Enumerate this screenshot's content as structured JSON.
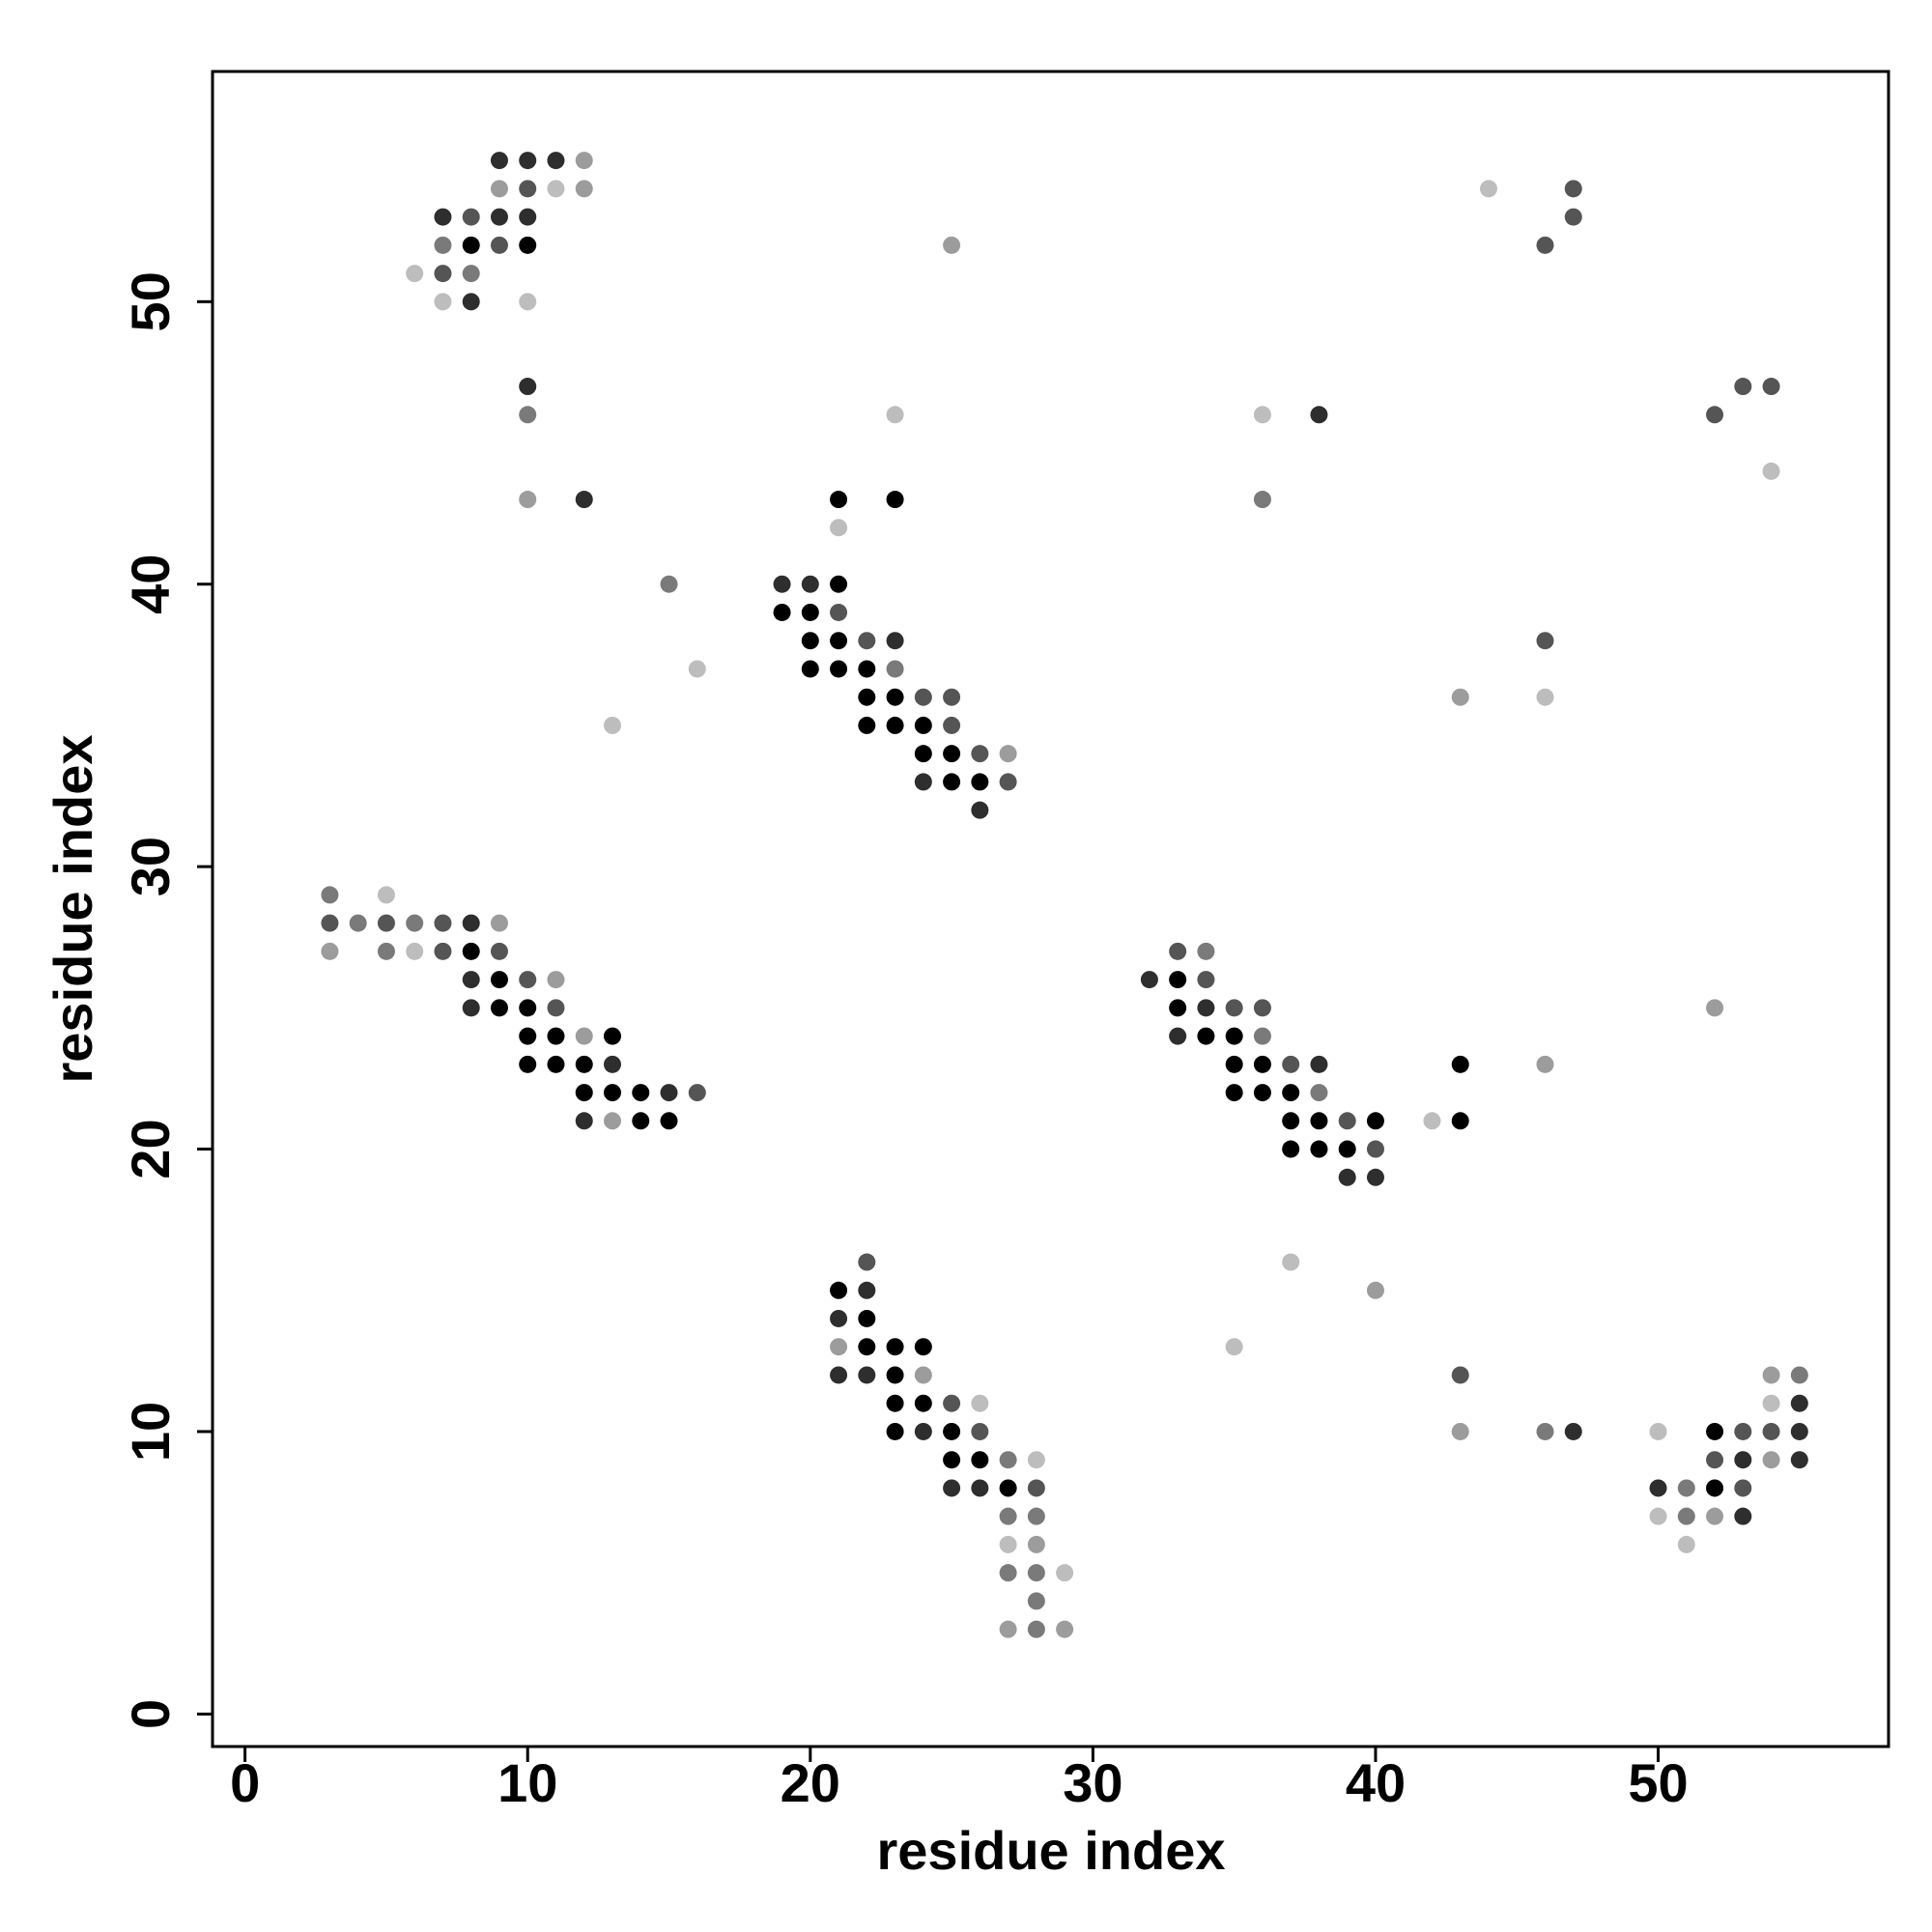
{
  "chart_data": {
    "type": "scatter",
    "xlabel": "residue index",
    "ylabel": "residue index",
    "xlim": [
      -1.15,
      58.15
    ],
    "ylim": [
      -1.15,
      58.15
    ],
    "xticks": [
      0,
      10,
      20,
      30,
      40,
      50
    ],
    "yticks": [
      0,
      10,
      20,
      30,
      40,
      50
    ],
    "series": [
      {
        "color": "#000000",
        "x": [
          8,
          10,
          21,
          23,
          21,
          19,
          20,
          20,
          21,
          20,
          21,
          22,
          22,
          23,
          22,
          23,
          24,
          24,
          25,
          25,
          26,
          8,
          9,
          33,
          9,
          10,
          33,
          10,
          11,
          13,
          34,
          35,
          10,
          11,
          12,
          35,
          36,
          43,
          12,
          13,
          14,
          35,
          36,
          37,
          14,
          15,
          37,
          38,
          40,
          43,
          37,
          38,
          39,
          21,
          22,
          22,
          23,
          24,
          23,
          23,
          24,
          23,
          25,
          52,
          25,
          26,
          27,
          52
        ],
        "values": [
          52,
          52,
          43,
          43,
          40,
          39,
          39,
          38,
          38,
          37,
          37,
          37,
          36,
          36,
          35,
          35,
          35,
          34,
          34,
          33,
          33,
          27,
          26,
          26,
          25,
          25,
          25,
          24,
          24,
          24,
          24,
          24,
          23,
          23,
          23,
          23,
          23,
          23,
          22,
          22,
          22,
          22,
          22,
          22,
          21,
          21,
          21,
          21,
          21,
          21,
          20,
          20,
          20,
          15,
          14,
          13,
          13,
          13,
          12,
          11,
          11,
          10,
          10,
          10,
          9,
          9,
          8,
          8
        ]
      },
      {
        "color": "#2e2e2e",
        "x": [
          9,
          10,
          11,
          7,
          9,
          10,
          8,
          10,
          38,
          12,
          19,
          20,
          23,
          24,
          26,
          8,
          8,
          32,
          8,
          34,
          33,
          13,
          38,
          15,
          12,
          39,
          40,
          22,
          21,
          21,
          22,
          55,
          24,
          47,
          55,
          53,
          55,
          25,
          26,
          50,
          53
        ],
        "values": [
          55,
          55,
          55,
          53,
          53,
          53,
          50,
          47,
          46,
          43,
          40,
          40,
          38,
          33,
          32,
          28,
          26,
          26,
          25,
          25,
          24,
          23,
          23,
          22,
          21,
          19,
          19,
          15,
          14,
          12,
          12,
          11,
          10,
          10,
          10,
          9,
          9,
          8,
          8,
          8,
          7
        ]
      },
      {
        "color": "#555555",
        "x": [
          10,
          47,
          8,
          47,
          9,
          46,
          7,
          53,
          54,
          52,
          21,
          22,
          46,
          24,
          25,
          25,
          26,
          27,
          3,
          5,
          7,
          7,
          9,
          33,
          10,
          34,
          11,
          35,
          36,
          37,
          16,
          39,
          40,
          22,
          43,
          25,
          26,
          53,
          54,
          52,
          28,
          53
        ],
        "values": [
          54,
          54,
          53,
          53,
          52,
          52,
          51,
          47,
          47,
          46,
          39,
          38,
          38,
          36,
          36,
          35,
          34,
          33,
          28,
          28,
          28,
          27,
          27,
          27,
          26,
          26,
          25,
          25,
          25,
          23,
          22,
          21,
          20,
          16,
          12,
          11,
          10,
          10,
          10,
          9,
          8,
          8
        ]
      },
      {
        "color": "#7a7a7a",
        "x": [
          7,
          8,
          10,
          36,
          15,
          23,
          3,
          4,
          6,
          5,
          34,
          36,
          38,
          55,
          46,
          27,
          51,
          27,
          28,
          51,
          27,
          28,
          28,
          28
        ],
        "values": [
          52,
          51,
          46,
          43,
          40,
          37,
          29,
          28,
          28,
          27,
          27,
          24,
          22,
          12,
          10,
          9,
          8,
          7,
          7,
          7,
          5,
          5,
          4,
          3
        ]
      },
      {
        "color": "#9c9c9c",
        "x": [
          12,
          9,
          12,
          25,
          10,
          43,
          27,
          9,
          3,
          11,
          52,
          12,
          46,
          13,
          40,
          21,
          24,
          54,
          43,
          54,
          52,
          28,
          27,
          29
        ],
        "values": [
          55,
          54,
          54,
          52,
          43,
          36,
          34,
          28,
          27,
          26,
          25,
          24,
          23,
          21,
          15,
          13,
          12,
          12,
          10,
          9,
          7,
          6,
          3,
          3
        ]
      },
      {
        "color": "#bdbdbd",
        "x": [
          11,
          44,
          6,
          7,
          10,
          23,
          36,
          54,
          21,
          16,
          46,
          13,
          5,
          6,
          42,
          37,
          35,
          26,
          54,
          50,
          28,
          50,
          27,
          51,
          29
        ],
        "values": [
          54,
          54,
          51,
          50,
          50,
          46,
          46,
          44,
          42,
          37,
          36,
          35,
          29,
          27,
          21,
          16,
          13,
          11,
          11,
          10,
          9,
          7,
          6,
          6,
          5
        ]
      }
    ]
  }
}
